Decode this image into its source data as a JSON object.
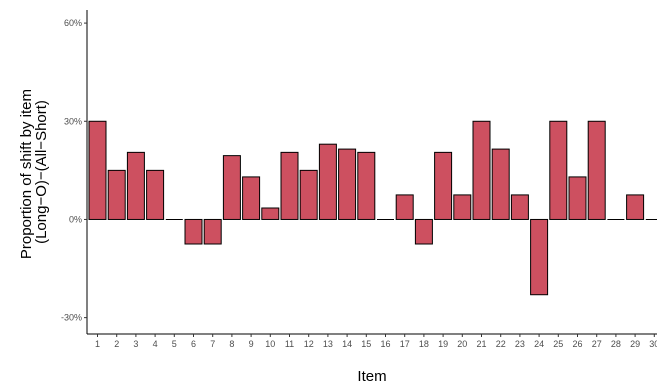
{
  "chart_data": {
    "type": "bar",
    "title": "",
    "xlabel": "Item",
    "ylabel_lines": [
      "Proportion of shift by item",
      "(Long−O)−(All−Short)"
    ],
    "categories": [
      "1",
      "2",
      "3",
      "4",
      "5",
      "6",
      "7",
      "8",
      "9",
      "10",
      "11",
      "12",
      "13",
      "14",
      "15",
      "16",
      "17",
      "18",
      "19",
      "20",
      "21",
      "22",
      "23",
      "24",
      "25",
      "26",
      "27",
      "28",
      "29",
      "30"
    ],
    "values": [
      30,
      15,
      20.5,
      15,
      0,
      -7.5,
      -7.5,
      19.5,
      13,
      3.5,
      20.5,
      15,
      23,
      21.5,
      20.5,
      0,
      7.5,
      -7.5,
      20.5,
      7.5,
      30,
      21.5,
      7.5,
      -23,
      30,
      13,
      30,
      0,
      7.5,
      0
    ],
    "ylim": [
      -35,
      64
    ],
    "yticks": [
      -30,
      0,
      30,
      60
    ],
    "ytick_labels": [
      "-30%",
      "0%",
      "30%",
      "60%"
    ],
    "grid": false,
    "legend": "none",
    "bar_color": "#cd5060",
    "bar_outline": "#000000"
  }
}
